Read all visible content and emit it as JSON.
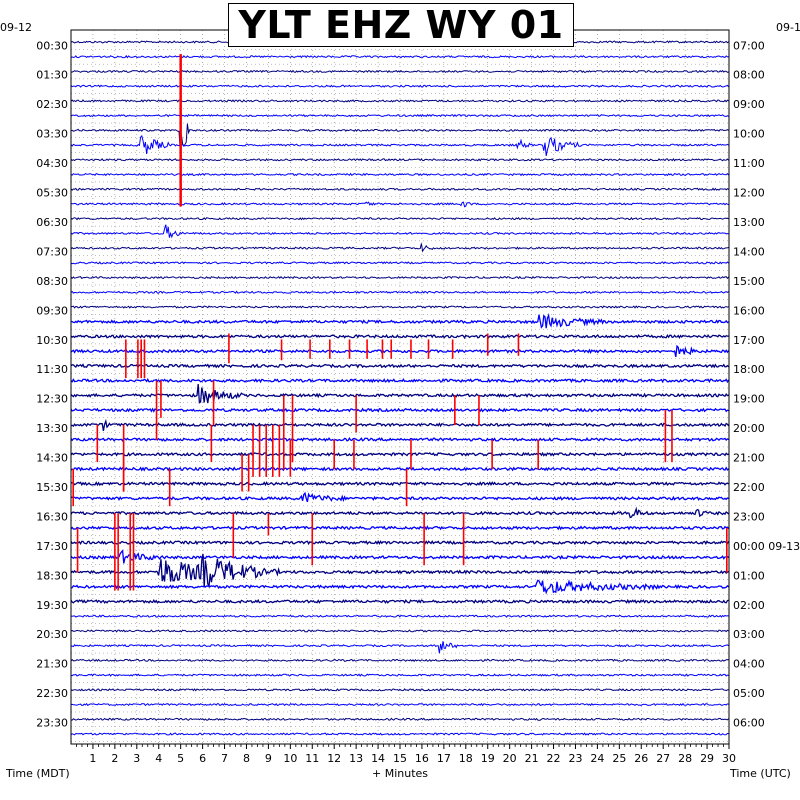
{
  "title": "YLT EHZ WY 01",
  "colors": {
    "trace_primary": "#000080",
    "trace_secondary": "#0000ff",
    "spike": "#ff0000",
    "grid": "#808080",
    "background": "#ffffff"
  },
  "chart_data": {
    "type": "line",
    "title": "YLT EHZ WY 01",
    "xlabel": "+ Minutes",
    "left_axis_label": "Time (MDT)",
    "right_axis_label": "Time (UTC)",
    "xlim": [
      0,
      30
    ],
    "x_ticks": [
      "1",
      "2",
      "3",
      "4",
      "5",
      "6",
      "7",
      "8",
      "9",
      "10",
      "11",
      "12",
      "13",
      "14",
      "15",
      "16",
      "17",
      "18",
      "19",
      "20",
      "21",
      "22",
      "23",
      "24",
      "25",
      "26",
      "27",
      "28",
      "29",
      "30"
    ],
    "left_date_label": "09-12",
    "right_date_label_top": "09-1",
    "right_date_change": "00:00 09-13",
    "left_time_labels": [
      "00:30",
      "01:30",
      "02:30",
      "03:30",
      "04:30",
      "05:30",
      "06:30",
      "07:30",
      "08:30",
      "09:30",
      "10:30",
      "11:30",
      "12:30",
      "13:30",
      "14:30",
      "15:30",
      "16:30",
      "17:30",
      "18:30",
      "19:30",
      "20:30",
      "21:30",
      "22:30",
      "23:30"
    ],
    "right_time_labels": [
      "07:00",
      "08:00",
      "09:00",
      "10:00",
      "11:00",
      "12:00",
      "13:00",
      "14:00",
      "15:00",
      "16:00",
      "17:00",
      "18:00",
      "19:00",
      "20:00",
      "21:00",
      "22:00",
      "23:00",
      "00:00 09-13",
      "01:00",
      "02:00",
      "03:00",
      "04:00",
      "05:00",
      "06:00"
    ],
    "rows": 48,
    "row_minutes": 30,
    "grid": true,
    "events": [
      {
        "row": 6,
        "minute": 5.0,
        "amp": 3.2,
        "dur": 0.4,
        "clip": true
      },
      {
        "row": 7,
        "minute": 3.2,
        "amp": 0.6,
        "dur": 1.3
      },
      {
        "row": 7,
        "minute": 20.4,
        "amp": 0.3,
        "dur": 0.6
      },
      {
        "row": 7,
        "minute": 21.6,
        "amp": 0.55,
        "dur": 1.6
      },
      {
        "row": 11,
        "minute": 13.5,
        "amp": 0.2,
        "dur": 0.3
      },
      {
        "row": 11,
        "minute": 17.8,
        "amp": 0.2,
        "dur": 0.5
      },
      {
        "row": 13,
        "minute": 4.3,
        "amp": 0.4,
        "dur": 0.8
      },
      {
        "row": 14,
        "minute": 16.0,
        "amp": 0.2,
        "dur": 0.5
      },
      {
        "row": 19,
        "minute": 21.3,
        "amp": 0.35,
        "dur": 3.0
      },
      {
        "row": 21,
        "minute": 27.5,
        "amp": 0.3,
        "dur": 1.2
      },
      {
        "row": 24,
        "minute": 5.8,
        "amp": 0.5,
        "dur": 2.0
      },
      {
        "row": 26,
        "minute": 1.5,
        "amp": 0.25,
        "dur": 0.3
      },
      {
        "row": 31,
        "minute": 10.5,
        "amp": 0.25,
        "dur": 2.0
      },
      {
        "row": 32,
        "minute": 25.5,
        "amp": 0.3,
        "dur": 0.8
      },
      {
        "row": 32,
        "minute": 28.5,
        "amp": 0.25,
        "dur": 0.5
      },
      {
        "row": 35,
        "minute": 2.2,
        "amp": 0.3,
        "dur": 2.0
      },
      {
        "row": 36,
        "minute": 4.0,
        "amp": 0.7,
        "dur": 4.5
      },
      {
        "row": 36,
        "minute": 6.0,
        "amp": 0.6,
        "dur": 3.5
      },
      {
        "row": 37,
        "minute": 21.2,
        "amp": 0.35,
        "dur": 5.5
      },
      {
        "row": 41,
        "minute": 16.8,
        "amp": 0.35,
        "dur": 0.8
      }
    ],
    "spikes": [
      {
        "row": 20,
        "minute": 2.5,
        "top": -0.2,
        "bottom": 2.8
      },
      {
        "row": 20,
        "minute": 3.05,
        "top": -0.2,
        "bottom": 2.8
      },
      {
        "row": 20,
        "minute": 3.2,
        "top": -0.2,
        "bottom": 2.8
      },
      {
        "row": 20,
        "minute": 3.35,
        "top": -0.2,
        "bottom": 2.8
      },
      {
        "row": 20,
        "minute": 7.2,
        "top": 0.2,
        "bottom": 1.8
      },
      {
        "row": 20,
        "minute": 9.6,
        "top": -0.2,
        "bottom": 1.6
      },
      {
        "row": 20,
        "minute": 10.9,
        "top": -0.2,
        "bottom": 1.5
      },
      {
        "row": 20,
        "minute": 11.8,
        "top": -0.2,
        "bottom": 1.5
      },
      {
        "row": 20,
        "minute": 12.7,
        "top": -0.2,
        "bottom": 1.5
      },
      {
        "row": 20,
        "minute": 13.5,
        "top": -0.2,
        "bottom": 1.5
      },
      {
        "row": 20,
        "minute": 14.2,
        "top": -0.2,
        "bottom": 1.5
      },
      {
        "row": 20,
        "minute": 14.6,
        "top": -0.2,
        "bottom": 1.5
      },
      {
        "row": 20,
        "minute": 15.5,
        "top": -0.2,
        "bottom": 1.5
      },
      {
        "row": 20,
        "minute": 16.3,
        "top": -0.2,
        "bottom": 1.5
      },
      {
        "row": 20,
        "minute": 17.4,
        "top": -0.2,
        "bottom": 1.5
      },
      {
        "row": 20,
        "minute": 19.0,
        "top": 0.2,
        "bottom": 1.3
      },
      {
        "row": 20,
        "minute": 20.4,
        "top": 0.2,
        "bottom": 1.3
      },
      {
        "row": 23,
        "minute": 3.9,
        "top": 0.0,
        "bottom": 4.0
      },
      {
        "row": 23,
        "minute": 4.1,
        "top": 0.0,
        "bottom": 2.5
      },
      {
        "row": 23,
        "minute": 6.5,
        "top": 0.0,
        "bottom": 3.0
      },
      {
        "row": 24,
        "minute": 9.7,
        "top": 0.0,
        "bottom": 5.0
      },
      {
        "row": 24,
        "minute": 10.1,
        "top": 0.0,
        "bottom": 4.5
      },
      {
        "row": 24,
        "minute": 13.0,
        "top": 0.0,
        "bottom": 2.5
      },
      {
        "row": 24,
        "minute": 17.5,
        "top": 0.0,
        "bottom": 2.0
      },
      {
        "row": 24,
        "minute": 18.6,
        "top": 0.0,
        "bottom": 2.0
      },
      {
        "row": 25,
        "minute": 27.1,
        "top": 0.0,
        "bottom": 3.5
      },
      {
        "row": 25,
        "minute": 27.4,
        "top": 0.0,
        "bottom": 3.5
      },
      {
        "row": 26,
        "minute": 1.2,
        "top": 0.0,
        "bottom": 2.5
      },
      {
        "row": 26,
        "minute": 2.4,
        "top": 0.0,
        "bottom": 4.5
      },
      {
        "row": 26,
        "minute": 6.4,
        "top": 0.0,
        "bottom": 2.5
      },
      {
        "row": 26,
        "minute": 8.3,
        "top": 0.0,
        "bottom": 3.5
      },
      {
        "row": 26,
        "minute": 8.6,
        "top": 0.0,
        "bottom": 3.5
      },
      {
        "row": 26,
        "minute": 8.9,
        "top": 0.0,
        "bottom": 3.5
      },
      {
        "row": 26,
        "minute": 9.2,
        "top": 0.0,
        "bottom": 3.5
      },
      {
        "row": 26,
        "minute": 9.5,
        "top": 0.0,
        "bottom": 3.5
      },
      {
        "row": 27,
        "minute": 10.0,
        "top": 0.0,
        "bottom": 2.5
      },
      {
        "row": 27,
        "minute": 12.0,
        "top": 0.0,
        "bottom": 2.0
      },
      {
        "row": 27,
        "minute": 12.9,
        "top": 0.0,
        "bottom": 2.0
      },
      {
        "row": 27,
        "minute": 15.5,
        "top": 0.0,
        "bottom": 2.0
      },
      {
        "row": 27,
        "minute": 19.2,
        "top": 0.0,
        "bottom": 2.0
      },
      {
        "row": 27,
        "minute": 21.3,
        "top": 0.0,
        "bottom": 2.0
      },
      {
        "row": 28,
        "minute": 2.4,
        "top": 0.0,
        "bottom": 2.5
      },
      {
        "row": 28,
        "minute": 7.8,
        "top": 0.0,
        "bottom": 2.5
      },
      {
        "row": 28,
        "minute": 8.1,
        "top": 0.0,
        "bottom": 2.5
      },
      {
        "row": 29,
        "minute": 0.1,
        "top": 0.0,
        "bottom": 2.5
      },
      {
        "row": 29,
        "minute": 4.5,
        "top": 0.0,
        "bottom": 2.5
      },
      {
        "row": 29,
        "minute": 15.3,
        "top": 0.0,
        "bottom": 2.5
      },
      {
        "row": 32,
        "minute": 2.0,
        "top": 0.0,
        "bottom": 5.2
      },
      {
        "row": 32,
        "minute": 2.15,
        "top": 0.0,
        "bottom": 5.2
      },
      {
        "row": 32,
        "minute": 2.7,
        "top": 0.0,
        "bottom": 5.2
      },
      {
        "row": 32,
        "minute": 2.85,
        "top": 0.0,
        "bottom": 5.2
      },
      {
        "row": 32,
        "minute": 7.4,
        "top": 0.0,
        "bottom": 3.0
      },
      {
        "row": 32,
        "minute": 9.0,
        "top": 0.0,
        "bottom": 1.5
      },
      {
        "row": 32,
        "minute": 11.0,
        "top": 0.0,
        "bottom": 3.5
      },
      {
        "row": 32,
        "minute": 16.1,
        "top": 0.0,
        "bottom": 3.5
      },
      {
        "row": 32,
        "minute": 17.9,
        "top": 0.0,
        "bottom": 3.5
      },
      {
        "row": 33,
        "minute": 0.3,
        "top": 0.0,
        "bottom": 3.0
      },
      {
        "row": 33,
        "minute": 29.9,
        "top": 0.0,
        "bottom": 3.0
      }
    ]
  }
}
